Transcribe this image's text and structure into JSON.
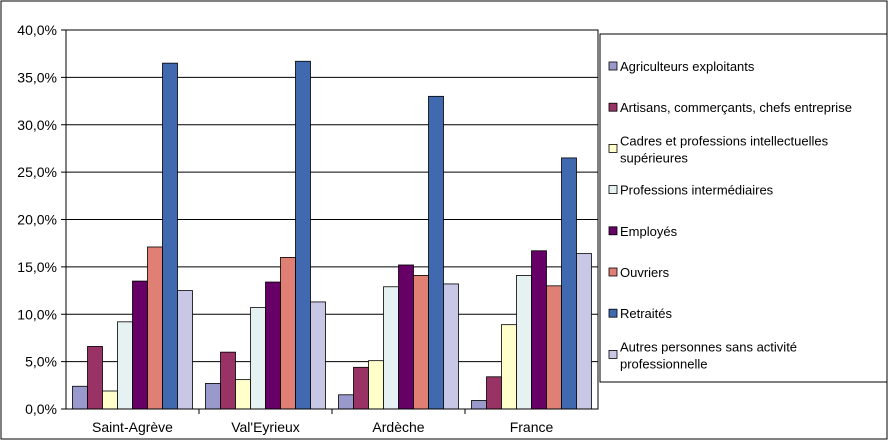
{
  "chart_data": {
    "type": "bar",
    "title": "",
    "xlabel": "",
    "ylabel": "",
    "ylim": [
      0,
      40
    ],
    "y_ticks": [
      "0,0%",
      "5,0%",
      "10,0%",
      "15,0%",
      "20,0%",
      "25,0%",
      "30,0%",
      "35,0%",
      "40,0%"
    ],
    "grid": true,
    "legend_position": "right",
    "categories": [
      "Saint-Agrève",
      "Val'Eyrieux",
      "Ardèche",
      "France"
    ],
    "series": [
      {
        "name": "Agriculteurs exploitants",
        "color": "#9999cc",
        "values": [
          2.4,
          2.7,
          1.5,
          0.9
        ]
      },
      {
        "name": "Artisans, commerçants, chefs entreprise",
        "color": "#993366",
        "values": [
          6.6,
          6.0,
          4.4,
          3.4
        ]
      },
      {
        "name": "Cadres et professions intellectuelles supérieures",
        "color": "#ffffcc",
        "values": [
          1.9,
          3.1,
          5.1,
          8.9
        ]
      },
      {
        "name": "Professions intermédiaires",
        "color": "#e6f2f2",
        "values": [
          9.2,
          10.7,
          12.9,
          14.1
        ]
      },
      {
        "name": "Employés",
        "color": "#660066",
        "values": [
          13.5,
          13.4,
          15.2,
          16.7
        ]
      },
      {
        "name": "Ouvriers",
        "color": "#e07f73",
        "values": [
          17.1,
          16.0,
          14.1,
          13.0
        ]
      },
      {
        "name": "Retraités",
        "color": "#4169b0",
        "values": [
          36.5,
          36.7,
          33.0,
          26.5
        ]
      },
      {
        "name": "Autres personnes sans activité professionnelle",
        "color": "#c8c8e6",
        "values": [
          12.5,
          11.3,
          13.2,
          16.4
        ]
      }
    ]
  }
}
